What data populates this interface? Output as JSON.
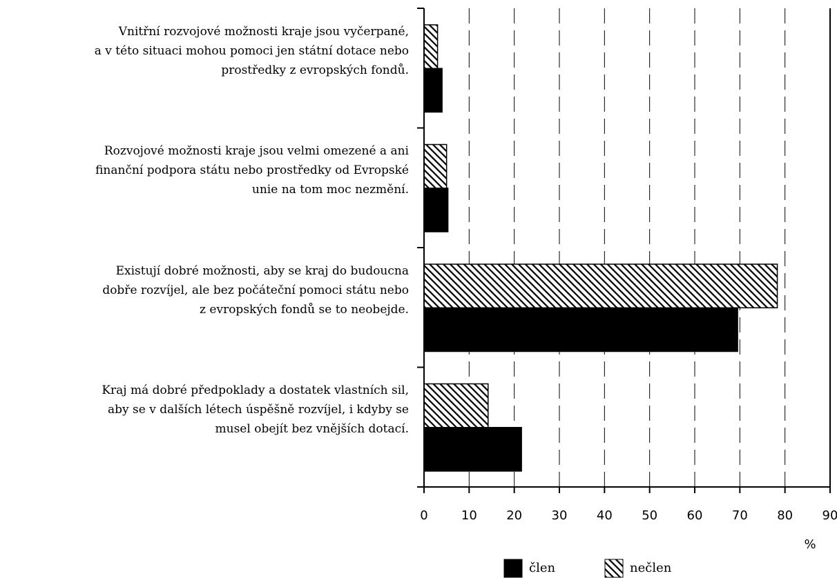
{
  "chart_data": {
    "type": "bar",
    "orientation": "horizontal",
    "categories": [
      "Vnitřní rozvojové možnosti kraje jsou vyčerpané,\na v této situaci mohou pomoci jen státní dotace nebo\nprostředky z evropských fondů.",
      "Rozvojové možnosti kraje jsou velmi omezené a ani\nfinanční podpora státu nebo prostředky od Evropské\nunie na tom moc nezmění.",
      "Existují dobré možnosti, aby se kraj do budoucna\ndobře rozvíjel, ale bez počáteční pomoci státu nebo\nz evropských fondů se to neobejde.",
      "Kraj má dobré předpoklady a dostatek vlastních sil,\naby se v dalších létech úspěšně rozvíjel, i kdyby se\nmusel obejít bez vnějších dotací."
    ],
    "series": [
      {
        "name": "nečlen",
        "color": "#000000",
        "pattern": "hatch",
        "values": [
          3,
          5,
          78.3,
          14.2
        ]
      },
      {
        "name": "člen",
        "color": "#000000",
        "pattern": "solid",
        "values": [
          4,
          5.3,
          69.5,
          21.6
        ]
      }
    ],
    "legend_order": [
      1,
      0
    ],
    "xlabel": "%",
    "xlim": [
      0,
      90
    ],
    "xticks": [
      0,
      10,
      20,
      30,
      40,
      50,
      60,
      70,
      80,
      90
    ],
    "grid": true,
    "grid_style": "dashed"
  }
}
